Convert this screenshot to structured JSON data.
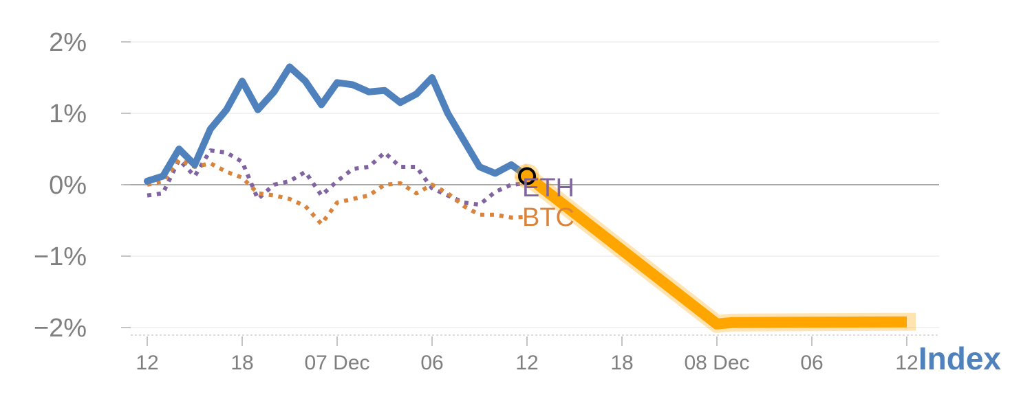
{
  "chart_data": {
    "type": "line",
    "title": "",
    "xlabel": "",
    "ylabel": "",
    "ylim": [
      -2.1,
      2.2
    ],
    "y_ticks": [
      {
        "value": 2,
        "label": "2%"
      },
      {
        "value": 1,
        "label": "1%"
      },
      {
        "value": 0,
        "label": "0%"
      },
      {
        "value": -1,
        "label": "−1%"
      },
      {
        "value": -2,
        "label": "−2%"
      }
    ],
    "x_range": [
      -0.2,
      16.2
    ],
    "x_ticks": [
      {
        "index": 0,
        "label": "12"
      },
      {
        "index": 2,
        "label": "18"
      },
      {
        "index": 4,
        "label": "07 Dec"
      },
      {
        "index": 6,
        "label": "06"
      },
      {
        "index": 8,
        "label": "12"
      },
      {
        "index": 10,
        "label": "18"
      },
      {
        "index": 12,
        "label": "08 Dec"
      },
      {
        "index": 14,
        "label": "06"
      },
      {
        "index": 16,
        "label": "12"
      }
    ],
    "series": [
      {
        "name": "ETH",
        "color": "#8064a2",
        "style": "dotted",
        "x": [
          0,
          0.33,
          0.67,
          1,
          1.33,
          1.67,
          2,
          2.33,
          2.67,
          3,
          3.33,
          3.67,
          4,
          4.33,
          4.67,
          5,
          5.33,
          5.67,
          6,
          6.33,
          6.67,
          7,
          7.33,
          7.67,
          8
        ],
        "values": [
          -0.15,
          -0.12,
          0.35,
          0.12,
          0.48,
          0.45,
          0.32,
          -0.2,
          0.0,
          0.05,
          0.18,
          -0.15,
          0.05,
          0.22,
          0.25,
          0.45,
          0.25,
          0.25,
          -0.05,
          -0.15,
          -0.25,
          -0.28,
          -0.1,
          0.0,
          0.02
        ]
      },
      {
        "name": "BTC",
        "color": "#d9843c",
        "style": "dotted",
        "x": [
          0,
          0.33,
          0.67,
          1,
          1.33,
          1.67,
          2,
          2.33,
          2.67,
          3,
          3.33,
          3.67,
          4,
          4.33,
          4.67,
          5,
          5.33,
          5.67,
          6,
          6.33,
          6.67,
          7,
          7.33,
          7.67,
          8
        ],
        "values": [
          0.0,
          0.05,
          0.35,
          0.25,
          0.3,
          0.18,
          0.1,
          -0.12,
          -0.15,
          -0.2,
          -0.3,
          -0.55,
          -0.25,
          -0.2,
          -0.15,
          0.0,
          0.02,
          -0.12,
          0.0,
          -0.12,
          -0.3,
          -0.42,
          -0.42,
          -0.46,
          -0.45
        ]
      },
      {
        "name": "Index",
        "color": "#4f81bd",
        "style": "solid",
        "x": [
          0,
          0.33,
          0.67,
          1,
          1.33,
          1.67,
          2,
          2.33,
          2.67,
          3,
          3.33,
          3.67,
          4,
          4.33,
          4.67,
          5,
          5.33,
          5.67,
          6,
          6.33,
          6.67,
          7,
          7.33,
          7.67,
          8
        ],
        "values": [
          0.05,
          0.12,
          0.5,
          0.28,
          0.78,
          1.05,
          1.45,
          1.05,
          1.3,
          1.65,
          1.45,
          1.12,
          1.43,
          1.4,
          1.3,
          1.32,
          1.15,
          1.27,
          1.5,
          1.0,
          0.62,
          0.25,
          0.16,
          0.28,
          0.12
        ]
      },
      {
        "name": "Index (highlighted)",
        "color": "#ffa500",
        "style": "highlight",
        "x": [
          8,
          12,
          12.33,
          16
        ],
        "values": [
          0.12,
          -1.95,
          -1.93,
          -1.92
        ]
      }
    ],
    "marker": {
      "series": "Index",
      "x": 8,
      "value": 0.12
    },
    "end_labels": [
      {
        "text": "ETH",
        "color": "#8064a2"
      },
      {
        "text": "BTC",
        "color": "#d9843c"
      }
    ],
    "series_title": {
      "text": "Index",
      "color": "#4f81bd"
    },
    "grid": true,
    "legend": "inline-end-labels"
  }
}
